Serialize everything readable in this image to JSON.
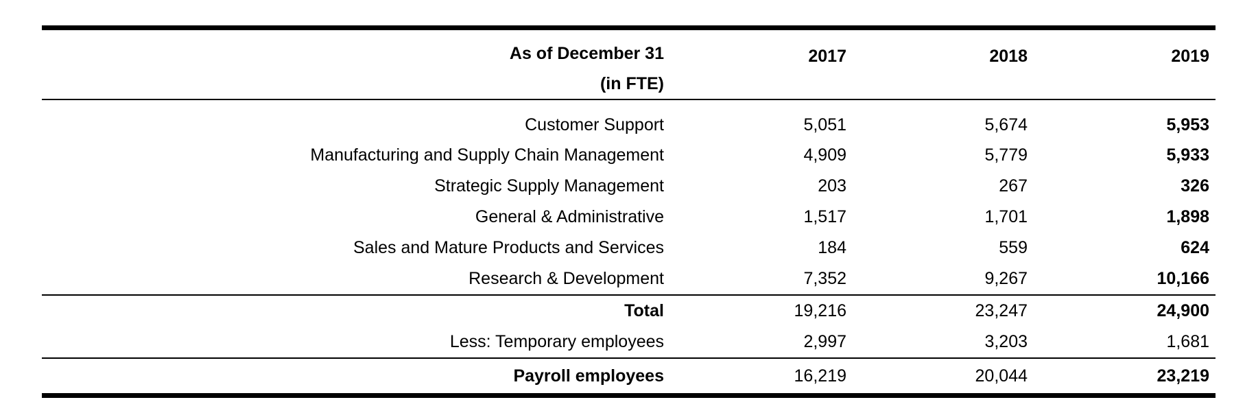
{
  "table": {
    "header": {
      "label_line1": "As of December 31",
      "label_line2": "(in FTE)",
      "years": [
        "2017",
        "2018",
        "2019"
      ]
    },
    "rows": [
      {
        "label": "Customer Support",
        "v2017": "5,051",
        "v2018": "5,674",
        "v2019": "5,953"
      },
      {
        "label": "Manufacturing and Supply Chain Management",
        "v2017": "4,909",
        "v2018": "5,779",
        "v2019": "5,933"
      },
      {
        "label": "Strategic Supply Management",
        "v2017": "203",
        "v2018": "267",
        "v2019": "326"
      },
      {
        "label": "General & Administrative",
        "v2017": "1,517",
        "v2018": "1,701",
        "v2019": "1,898"
      },
      {
        "label": "Sales and Mature Products and Services",
        "v2017": "184",
        "v2018": "559",
        "v2019": "624"
      },
      {
        "label": "Research & Development",
        "v2017": "7,352",
        "v2018": "9,267",
        "v2019": "10,166"
      }
    ],
    "total": {
      "label": "Total",
      "v2017": "19,216",
      "v2018": "23,247",
      "v2019": "24,900"
    },
    "less": {
      "label": "Less: Temporary employees",
      "v2017": "2,997",
      "v2018": "3,203",
      "v2019": "1,681"
    },
    "payroll": {
      "label": "Payroll employees",
      "v2017": "16,219",
      "v2018": "20,044",
      "v2019": "23,219"
    }
  }
}
